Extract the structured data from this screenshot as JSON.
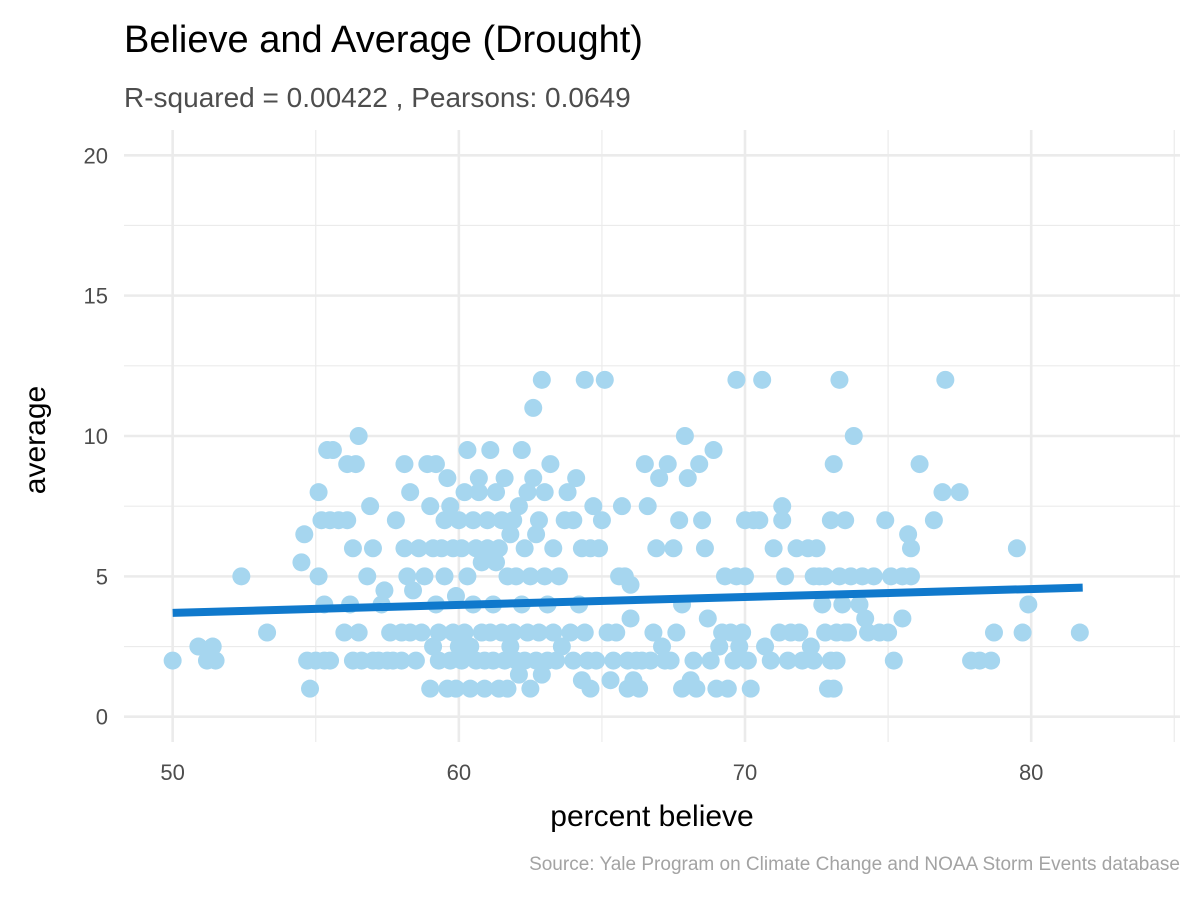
{
  "chart_data": {
    "type": "scatter",
    "title": "Believe and Average (Drought)",
    "subtitle": "R-squared =  0.00422 , Pearsons: 0.0649",
    "xlabel": "percent believe",
    "ylabel": "average",
    "caption": "Source: Yale Program on Climate Change and NOAA Storm Events database",
    "xlim": [
      48.3,
      85.2
    ],
    "ylim": [
      -0.9,
      20.9
    ],
    "x_ticks": [
      50,
      60,
      70,
      80
    ],
    "y_ticks": [
      0,
      5,
      10,
      15,
      20
    ],
    "x_tick_labels": [
      "50",
      "60",
      "70",
      "80"
    ],
    "y_tick_labels": [
      "0",
      "5",
      "10",
      "15",
      "20"
    ],
    "grid": true,
    "legend": "none",
    "colors": {
      "points": "#a6d6ef",
      "trend": "#1079cc",
      "grid": "#ebebeb"
    },
    "trend_line": {
      "x": [
        50.0,
        81.8
      ],
      "y": [
        3.7,
        4.6
      ]
    },
    "points": [
      {
        "x": 50.0,
        "y": 2
      },
      {
        "x": 50.9,
        "y": 2.5
      },
      {
        "x": 51.2,
        "y": 2
      },
      {
        "x": 51.4,
        "y": 2.5
      },
      {
        "x": 51.5,
        "y": 2
      },
      {
        "x": 52.4,
        "y": 5
      },
      {
        "x": 53.3,
        "y": 3
      },
      {
        "x": 54.5,
        "y": 5.5
      },
      {
        "x": 54.6,
        "y": 6.5
      },
      {
        "x": 54.7,
        "y": 2
      },
      {
        "x": 54.8,
        "y": 1
      },
      {
        "x": 55.0,
        "y": 2
      },
      {
        "x": 55.1,
        "y": 5
      },
      {
        "x": 55.1,
        "y": 8
      },
      {
        "x": 55.2,
        "y": 7
      },
      {
        "x": 55.3,
        "y": 2
      },
      {
        "x": 55.3,
        "y": 4
      },
      {
        "x": 55.4,
        "y": 9.5
      },
      {
        "x": 55.5,
        "y": 7
      },
      {
        "x": 55.5,
        "y": 2
      },
      {
        "x": 55.6,
        "y": 9.5
      },
      {
        "x": 55.8,
        "y": 7
      },
      {
        "x": 56.0,
        "y": 3
      },
      {
        "x": 56.1,
        "y": 9
      },
      {
        "x": 56.1,
        "y": 7
      },
      {
        "x": 56.2,
        "y": 4
      },
      {
        "x": 56.3,
        "y": 2
      },
      {
        "x": 56.3,
        "y": 6
      },
      {
        "x": 56.4,
        "y": 9
      },
      {
        "x": 56.5,
        "y": 3
      },
      {
        "x": 56.5,
        "y": 10
      },
      {
        "x": 56.6,
        "y": 2
      },
      {
        "x": 56.8,
        "y": 5
      },
      {
        "x": 56.9,
        "y": 7.5
      },
      {
        "x": 57.0,
        "y": 6
      },
      {
        "x": 57.0,
        "y": 2
      },
      {
        "x": 57.2,
        "y": 2
      },
      {
        "x": 57.3,
        "y": 4
      },
      {
        "x": 57.4,
        "y": 4.5
      },
      {
        "x": 57.5,
        "y": 2
      },
      {
        "x": 57.6,
        "y": 3
      },
      {
        "x": 57.7,
        "y": 2
      },
      {
        "x": 57.8,
        "y": 7
      },
      {
        "x": 58.0,
        "y": 3
      },
      {
        "x": 58.0,
        "y": 2
      },
      {
        "x": 58.1,
        "y": 6
      },
      {
        "x": 58.1,
        "y": 9
      },
      {
        "x": 58.2,
        "y": 5
      },
      {
        "x": 58.3,
        "y": 8
      },
      {
        "x": 58.3,
        "y": 3
      },
      {
        "x": 58.4,
        "y": 4.5
      },
      {
        "x": 58.5,
        "y": 2
      },
      {
        "x": 58.6,
        "y": 6
      },
      {
        "x": 58.7,
        "y": 3
      },
      {
        "x": 58.8,
        "y": 5
      },
      {
        "x": 58.9,
        "y": 9
      },
      {
        "x": 59.0,
        "y": 7.5
      },
      {
        "x": 59.0,
        "y": 1
      },
      {
        "x": 59.1,
        "y": 2.5
      },
      {
        "x": 59.1,
        "y": 6
      },
      {
        "x": 59.2,
        "y": 9
      },
      {
        "x": 59.2,
        "y": 4
      },
      {
        "x": 59.3,
        "y": 3
      },
      {
        "x": 59.3,
        "y": 2
      },
      {
        "x": 59.4,
        "y": 6
      },
      {
        "x": 59.5,
        "y": 5
      },
      {
        "x": 59.5,
        "y": 7
      },
      {
        "x": 59.6,
        "y": 1
      },
      {
        "x": 59.6,
        "y": 8.5
      },
      {
        "x": 59.7,
        "y": 7.5
      },
      {
        "x": 59.7,
        "y": 2
      },
      {
        "x": 59.8,
        "y": 3
      },
      {
        "x": 59.8,
        "y": 6
      },
      {
        "x": 59.9,
        "y": 4.3
      },
      {
        "x": 59.9,
        "y": 1
      },
      {
        "x": 60.0,
        "y": 2.5
      },
      {
        "x": 60.0,
        "y": 7
      },
      {
        "x": 60.1,
        "y": 2
      },
      {
        "x": 60.1,
        "y": 6
      },
      {
        "x": 60.2,
        "y": 8
      },
      {
        "x": 60.2,
        "y": 3
      },
      {
        "x": 60.3,
        "y": 5
      },
      {
        "x": 60.3,
        "y": 9.5
      },
      {
        "x": 60.4,
        "y": 1
      },
      {
        "x": 60.4,
        "y": 2.5
      },
      {
        "x": 60.5,
        "y": 4
      },
      {
        "x": 60.5,
        "y": 7
      },
      {
        "x": 60.6,
        "y": 6
      },
      {
        "x": 60.6,
        "y": 2
      },
      {
        "x": 60.7,
        "y": 8
      },
      {
        "x": 60.7,
        "y": 8.5
      },
      {
        "x": 60.8,
        "y": 3
      },
      {
        "x": 60.8,
        "y": 5.5
      },
      {
        "x": 60.9,
        "y": 1
      },
      {
        "x": 60.9,
        "y": 2
      },
      {
        "x": 61.0,
        "y": 6
      },
      {
        "x": 61.0,
        "y": 7
      },
      {
        "x": 61.1,
        "y": 9.5
      },
      {
        "x": 61.1,
        "y": 3
      },
      {
        "x": 61.2,
        "y": 4
      },
      {
        "x": 61.2,
        "y": 2
      },
      {
        "x": 61.3,
        "y": 5.5
      },
      {
        "x": 61.3,
        "y": 8
      },
      {
        "x": 61.4,
        "y": 1
      },
      {
        "x": 61.4,
        "y": 6
      },
      {
        "x": 61.5,
        "y": 7
      },
      {
        "x": 61.5,
        "y": 3
      },
      {
        "x": 61.6,
        "y": 2
      },
      {
        "x": 61.6,
        "y": 8.5
      },
      {
        "x": 61.7,
        "y": 5
      },
      {
        "x": 61.7,
        "y": 1
      },
      {
        "x": 61.8,
        "y": 6.5
      },
      {
        "x": 61.8,
        "y": 2.5
      },
      {
        "x": 61.9,
        "y": 3
      },
      {
        "x": 61.9,
        "y": 7
      },
      {
        "x": 62.0,
        "y": 2
      },
      {
        "x": 62.0,
        "y": 5
      },
      {
        "x": 62.1,
        "y": 7.5
      },
      {
        "x": 62.1,
        "y": 1.5
      },
      {
        "x": 62.2,
        "y": 9.5
      },
      {
        "x": 62.2,
        "y": 4
      },
      {
        "x": 62.3,
        "y": 6
      },
      {
        "x": 62.3,
        "y": 2
      },
      {
        "x": 62.4,
        "y": 8
      },
      {
        "x": 62.4,
        "y": 3
      },
      {
        "x": 62.5,
        "y": 1
      },
      {
        "x": 62.5,
        "y": 5
      },
      {
        "x": 62.6,
        "y": 8.5
      },
      {
        "x": 62.6,
        "y": 11
      },
      {
        "x": 62.7,
        "y": 2
      },
      {
        "x": 62.7,
        "y": 6.5
      },
      {
        "x": 62.8,
        "y": 3
      },
      {
        "x": 62.8,
        "y": 7
      },
      {
        "x": 62.9,
        "y": 12
      },
      {
        "x": 62.9,
        "y": 1.5
      },
      {
        "x": 63.0,
        "y": 5
      },
      {
        "x": 63.0,
        "y": 8
      },
      {
        "x": 63.1,
        "y": 2
      },
      {
        "x": 63.1,
        "y": 4
      },
      {
        "x": 63.2,
        "y": 9
      },
      {
        "x": 63.3,
        "y": 6
      },
      {
        "x": 63.3,
        "y": 3
      },
      {
        "x": 63.4,
        "y": 2
      },
      {
        "x": 63.5,
        "y": 5
      },
      {
        "x": 63.6,
        "y": 2.5
      },
      {
        "x": 63.7,
        "y": 7
      },
      {
        "x": 63.8,
        "y": 8
      },
      {
        "x": 63.9,
        "y": 3
      },
      {
        "x": 64.0,
        "y": 2
      },
      {
        "x": 64.0,
        "y": 7
      },
      {
        "x": 64.1,
        "y": 8.5
      },
      {
        "x": 64.2,
        "y": 4
      },
      {
        "x": 64.3,
        "y": 1.3
      },
      {
        "x": 64.3,
        "y": 6
      },
      {
        "x": 64.4,
        "y": 12
      },
      {
        "x": 64.4,
        "y": 3
      },
      {
        "x": 64.5,
        "y": 2
      },
      {
        "x": 64.6,
        "y": 1
      },
      {
        "x": 64.6,
        "y": 6
      },
      {
        "x": 64.7,
        "y": 7.5
      },
      {
        "x": 64.8,
        "y": 2
      },
      {
        "x": 64.9,
        "y": 6
      },
      {
        "x": 65.0,
        "y": 7
      },
      {
        "x": 65.1,
        "y": 12
      },
      {
        "x": 65.2,
        "y": 3
      },
      {
        "x": 65.3,
        "y": 1.3
      },
      {
        "x": 65.4,
        "y": 2
      },
      {
        "x": 65.5,
        "y": 3
      },
      {
        "x": 65.6,
        "y": 5
      },
      {
        "x": 65.7,
        "y": 7.5
      },
      {
        "x": 65.8,
        "y": 5
      },
      {
        "x": 65.9,
        "y": 1
      },
      {
        "x": 65.9,
        "y": 2
      },
      {
        "x": 66.0,
        "y": 4.7
      },
      {
        "x": 66.0,
        "y": 3.5
      },
      {
        "x": 66.1,
        "y": 1.3
      },
      {
        "x": 66.2,
        "y": 2
      },
      {
        "x": 66.3,
        "y": 1
      },
      {
        "x": 66.4,
        "y": 2
      },
      {
        "x": 66.5,
        "y": 9
      },
      {
        "x": 66.6,
        "y": 7.5
      },
      {
        "x": 66.7,
        "y": 2
      },
      {
        "x": 66.8,
        "y": 3
      },
      {
        "x": 66.9,
        "y": 6
      },
      {
        "x": 67.0,
        "y": 8.5
      },
      {
        "x": 67.1,
        "y": 2.5
      },
      {
        "x": 67.2,
        "y": 2
      },
      {
        "x": 67.3,
        "y": 9
      },
      {
        "x": 67.4,
        "y": 2
      },
      {
        "x": 67.5,
        "y": 6
      },
      {
        "x": 67.6,
        "y": 3
      },
      {
        "x": 67.7,
        "y": 7
      },
      {
        "x": 67.8,
        "y": 4
      },
      {
        "x": 67.8,
        "y": 1
      },
      {
        "x": 67.9,
        "y": 10
      },
      {
        "x": 68.0,
        "y": 8.5
      },
      {
        "x": 68.1,
        "y": 1.3
      },
      {
        "x": 68.2,
        "y": 2
      },
      {
        "x": 68.3,
        "y": 1
      },
      {
        "x": 68.4,
        "y": 9
      },
      {
        "x": 68.5,
        "y": 7
      },
      {
        "x": 68.6,
        "y": 6
      },
      {
        "x": 68.7,
        "y": 3.5
      },
      {
        "x": 68.8,
        "y": 2
      },
      {
        "x": 68.9,
        "y": 9.5
      },
      {
        "x": 69.0,
        "y": 1
      },
      {
        "x": 69.1,
        "y": 2.5
      },
      {
        "x": 69.2,
        "y": 3
      },
      {
        "x": 69.3,
        "y": 5
      },
      {
        "x": 69.4,
        "y": 1
      },
      {
        "x": 69.5,
        "y": 3
      },
      {
        "x": 69.6,
        "y": 2
      },
      {
        "x": 69.7,
        "y": 5
      },
      {
        "x": 69.7,
        "y": 12
      },
      {
        "x": 69.8,
        "y": 2.5
      },
      {
        "x": 69.9,
        "y": 3
      },
      {
        "x": 70.0,
        "y": 5
      },
      {
        "x": 70.0,
        "y": 7
      },
      {
        "x": 70.1,
        "y": 2
      },
      {
        "x": 70.2,
        "y": 1
      },
      {
        "x": 70.3,
        "y": 7
      },
      {
        "x": 70.5,
        "y": 7
      },
      {
        "x": 70.6,
        "y": 12
      },
      {
        "x": 70.7,
        "y": 2.5
      },
      {
        "x": 70.9,
        "y": 2
      },
      {
        "x": 71.0,
        "y": 6
      },
      {
        "x": 71.2,
        "y": 3
      },
      {
        "x": 71.3,
        "y": 7.5
      },
      {
        "x": 71.3,
        "y": 7
      },
      {
        "x": 71.4,
        "y": 5
      },
      {
        "x": 71.5,
        "y": 2
      },
      {
        "x": 71.6,
        "y": 3
      },
      {
        "x": 71.8,
        "y": 6
      },
      {
        "x": 71.9,
        "y": 3
      },
      {
        "x": 72.0,
        "y": 2
      },
      {
        "x": 72.2,
        "y": 6
      },
      {
        "x": 72.3,
        "y": 2.5
      },
      {
        "x": 72.4,
        "y": 5
      },
      {
        "x": 72.4,
        "y": 2
      },
      {
        "x": 72.5,
        "y": 6
      },
      {
        "x": 72.6,
        "y": 5
      },
      {
        "x": 72.7,
        "y": 4
      },
      {
        "x": 72.8,
        "y": 3
      },
      {
        "x": 72.8,
        "y": 5
      },
      {
        "x": 72.9,
        "y": 1
      },
      {
        "x": 73.0,
        "y": 2
      },
      {
        "x": 73.0,
        "y": 7
      },
      {
        "x": 73.1,
        "y": 9
      },
      {
        "x": 73.1,
        "y": 1
      },
      {
        "x": 73.2,
        "y": 3
      },
      {
        "x": 73.2,
        "y": 2
      },
      {
        "x": 73.3,
        "y": 12
      },
      {
        "x": 73.3,
        "y": 5
      },
      {
        "x": 73.4,
        "y": 4
      },
      {
        "x": 73.5,
        "y": 3
      },
      {
        "x": 73.5,
        "y": 7
      },
      {
        "x": 73.6,
        "y": 3
      },
      {
        "x": 73.7,
        "y": 5
      },
      {
        "x": 73.8,
        "y": 10
      },
      {
        "x": 74.0,
        "y": 4
      },
      {
        "x": 74.1,
        "y": 5
      },
      {
        "x": 74.2,
        "y": 3.5
      },
      {
        "x": 74.3,
        "y": 3
      },
      {
        "x": 74.5,
        "y": 5
      },
      {
        "x": 74.7,
        "y": 3
      },
      {
        "x": 74.9,
        "y": 7
      },
      {
        "x": 75.0,
        "y": 3
      },
      {
        "x": 75.1,
        "y": 5
      },
      {
        "x": 75.2,
        "y": 2
      },
      {
        "x": 75.5,
        "y": 3.5
      },
      {
        "x": 75.5,
        "y": 5
      },
      {
        "x": 75.7,
        "y": 6.5
      },
      {
        "x": 75.8,
        "y": 5
      },
      {
        "x": 75.8,
        "y": 6
      },
      {
        "x": 76.1,
        "y": 9
      },
      {
        "x": 76.6,
        "y": 7
      },
      {
        "x": 76.9,
        "y": 8
      },
      {
        "x": 77.0,
        "y": 12
      },
      {
        "x": 77.5,
        "y": 8
      },
      {
        "x": 77.9,
        "y": 2
      },
      {
        "x": 78.2,
        "y": 2
      },
      {
        "x": 78.6,
        "y": 2
      },
      {
        "x": 78.7,
        "y": 3
      },
      {
        "x": 79.5,
        "y": 6
      },
      {
        "x": 79.7,
        "y": 3
      },
      {
        "x": 79.9,
        "y": 4
      },
      {
        "x": 81.7,
        "y": 3
      }
    ]
  }
}
